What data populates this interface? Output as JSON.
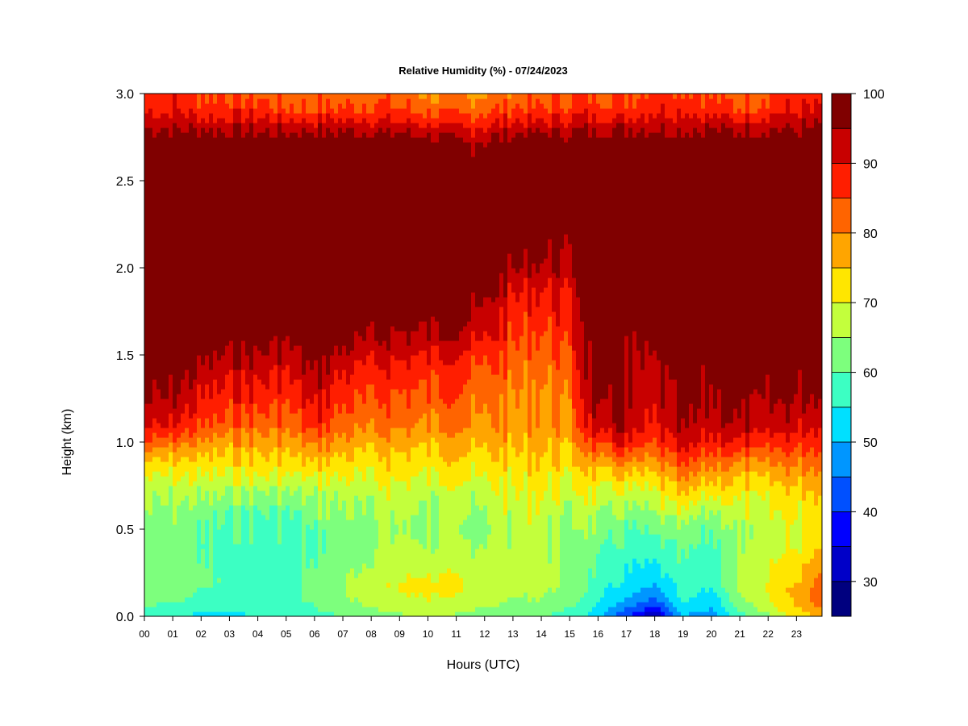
{
  "chart_data": {
    "type": "heatmap",
    "title": "Relative Humidity (%) - 07/24/2023",
    "xlabel": "Hours (UTC)",
    "ylabel": "Height (km)",
    "xlim": [
      0,
      23.9
    ],
    "ylim": [
      0,
      3.0
    ],
    "x_ticks": [
      "00",
      "01",
      "02",
      "03",
      "04",
      "05",
      "06",
      "07",
      "08",
      "09",
      "10",
      "11",
      "12",
      "13",
      "14",
      "15",
      "16",
      "17",
      "18",
      "19",
      "20",
      "21",
      "22",
      "23"
    ],
    "y_ticks": [
      "0.0",
      "0.5",
      "1.0",
      "1.5",
      "2.0",
      "2.5",
      "3.0"
    ],
    "colorbar": {
      "levels": [
        25,
        30,
        35,
        40,
        45,
        50,
        55,
        60,
        65,
        70,
        75,
        80,
        85,
        90,
        95,
        100
      ],
      "colors": [
        "#00007f",
        "#0000c8",
        "#0000ff",
        "#0050ff",
        "#0096ff",
        "#00e0ff",
        "#3cffc3",
        "#7dff7d",
        "#c3ff3c",
        "#ffe600",
        "#ffa500",
        "#ff6400",
        "#ff1e00",
        "#c80000",
        "#800000"
      ],
      "tick_labels": [
        "30",
        "40",
        "50",
        "60",
        "70",
        "80",
        "90",
        "100"
      ],
      "tick_values": [
        30,
        40,
        50,
        60,
        70,
        80,
        90,
        100
      ]
    },
    "profile_heights_km": [
      0.0,
      0.05,
      0.1,
      0.15,
      0.2,
      0.3,
      0.4,
      0.5,
      0.6,
      0.7,
      0.8,
      0.9,
      1.0,
      1.1,
      1.25,
      1.4,
      1.5,
      1.6,
      1.75,
      1.9,
      2.0,
      2.2,
      2.5,
      2.7,
      2.8,
      2.9,
      3.0
    ],
    "profiles": [
      {
        "hour": 0,
        "rh": [
          55,
          60,
          62,
          63,
          64,
          63,
          63,
          64,
          65,
          67,
          70,
          76,
          85,
          92,
          96,
          98,
          100,
          100,
          100,
          100,
          100,
          100,
          100,
          100,
          95,
          90,
          88
        ]
      },
      {
        "hour": 1,
        "rh": [
          55,
          58,
          62,
          63,
          64,
          63,
          62,
          63,
          64,
          66,
          70,
          75,
          82,
          90,
          95,
          98,
          100,
          100,
          100,
          100,
          100,
          100,
          100,
          100,
          95,
          90,
          88
        ]
      },
      {
        "hour": 2,
        "rh": [
          54,
          56,
          58,
          60,
          62,
          61,
          60,
          61,
          63,
          66,
          70,
          74,
          80,
          86,
          90,
          94,
          97,
          100,
          100,
          100,
          100,
          100,
          100,
          100,
          95,
          88,
          85
        ]
      },
      {
        "hour": 3,
        "rh": [
          54,
          56,
          57,
          58,
          59,
          58,
          58,
          59,
          61,
          65,
          70,
          74,
          78,
          84,
          88,
          92,
          95,
          98,
          100,
          100,
          100,
          100,
          100,
          100,
          94,
          88,
          85
        ]
      },
      {
        "hour": 4,
        "rh": [
          55,
          56,
          57,
          58,
          59,
          58,
          58,
          58,
          60,
          64,
          70,
          74,
          78,
          83,
          88,
          92,
          95,
          98,
          100,
          100,
          100,
          100,
          100,
          100,
          94,
          88,
          84
        ]
      },
      {
        "hour": 5,
        "rh": [
          56,
          57,
          58,
          59,
          59,
          58,
          58,
          58,
          60,
          64,
          70,
          74,
          78,
          82,
          86,
          90,
          93,
          96,
          100,
          100,
          100,
          100,
          100,
          100,
          94,
          86,
          82
        ]
      },
      {
        "hour": 6,
        "rh": [
          58,
          60,
          61,
          62,
          62,
          61,
          60,
          61,
          63,
          66,
          70,
          76,
          82,
          88,
          92,
          96,
          98,
          100,
          100,
          100,
          100,
          100,
          100,
          100,
          94,
          86,
          82
        ]
      },
      {
        "hour": 7,
        "rh": [
          60,
          62,
          64,
          65,
          65,
          63,
          62,
          62,
          64,
          66,
          70,
          74,
          78,
          82,
          86,
          90,
          94,
          97,
          100,
          100,
          100,
          100,
          100,
          100,
          94,
          86,
          82
        ]
      },
      {
        "hour": 8,
        "rh": [
          62,
          65,
          67,
          68,
          68,
          66,
          65,
          65,
          66,
          68,
          71,
          74,
          78,
          82,
          86,
          89,
          92,
          96,
          99,
          100,
          100,
          100,
          100,
          100,
          94,
          87,
          83
        ]
      },
      {
        "hour": 9,
        "rh": [
          64,
          67,
          69,
          70,
          70,
          68,
          66,
          65,
          66,
          68,
          71,
          74,
          77,
          81,
          84,
          88,
          91,
          94,
          98,
          100,
          100,
          100,
          100,
          100,
          93,
          86,
          82
        ]
      },
      {
        "hour": 10,
        "rh": [
          65,
          68,
          70,
          71,
          71,
          68,
          66,
          64,
          65,
          67,
          70,
          73,
          76,
          80,
          84,
          87,
          90,
          94,
          98,
          100,
          100,
          100,
          100,
          100,
          92,
          84,
          80
        ]
      },
      {
        "hour": 11,
        "rh": [
          64,
          67,
          69,
          70,
          70,
          68,
          65,
          63,
          64,
          66,
          70,
          73,
          76,
          80,
          83,
          86,
          89,
          93,
          97,
          100,
          100,
          100,
          100,
          96,
          90,
          83,
          78
        ]
      },
      {
        "hour": 12,
        "rh": [
          62,
          65,
          67,
          68,
          68,
          67,
          66,
          65,
          66,
          68,
          71,
          74,
          77,
          80,
          82,
          85,
          87,
          91,
          95,
          98,
          100,
          100,
          100,
          97,
          91,
          85,
          80
        ]
      },
      {
        "hour": 13,
        "rh": [
          60,
          63,
          65,
          66,
          67,
          67,
          67,
          67,
          68,
          70,
          72,
          74,
          77,
          79,
          80,
          82,
          84,
          86,
          88,
          92,
          96,
          100,
          100,
          100,
          93,
          86,
          82
        ]
      },
      {
        "hour": 14,
        "rh": [
          60,
          63,
          65,
          66,
          67,
          67,
          67,
          67,
          68,
          70,
          72,
          74,
          76,
          78,
          79,
          80,
          82,
          84,
          87,
          90,
          94,
          98,
          100,
          100,
          93,
          86,
          82
        ]
      },
      {
        "hour": 15,
        "rh": [
          58,
          60,
          62,
          63,
          64,
          64,
          64,
          64,
          66,
          68,
          71,
          74,
          77,
          80,
          82,
          84,
          86,
          88,
          90,
          92,
          94,
          98,
          100,
          100,
          94,
          88,
          84
        ]
      },
      {
        "hour": 16,
        "rh": [
          52,
          54,
          56,
          57,
          58,
          60,
          62,
          64,
          67,
          70,
          74,
          80,
          88,
          94,
          98,
          100,
          100,
          100,
          100,
          100,
          100,
          100,
          100,
          100,
          94,
          88,
          85
        ]
      },
      {
        "hour": 17,
        "rh": [
          40,
          46,
          50,
          52,
          54,
          56,
          58,
          60,
          64,
          68,
          74,
          82,
          90,
          95,
          96,
          96,
          96,
          97,
          98,
          100,
          100,
          100,
          100,
          100,
          95,
          88,
          85
        ]
      },
      {
        "hour": 18,
        "rh": [
          30,
          38,
          44,
          48,
          52,
          55,
          58,
          62,
          66,
          70,
          74,
          80,
          86,
          90,
          92,
          94,
          96,
          98,
          100,
          100,
          100,
          100,
          100,
          100,
          95,
          90,
          87
        ]
      },
      {
        "hour": 19,
        "rh": [
          50,
          54,
          56,
          58,
          58,
          60,
          62,
          65,
          70,
          76,
          82,
          88,
          94,
          97,
          99,
          100,
          100,
          100,
          100,
          100,
          100,
          100,
          100,
          100,
          95,
          90,
          87
        ]
      },
      {
        "hour": 20,
        "rh": [
          46,
          50,
          52,
          54,
          56,
          57,
          58,
          60,
          64,
          70,
          76,
          82,
          88,
          92,
          94,
          96,
          98,
          100,
          100,
          100,
          100,
          100,
          100,
          100,
          95,
          88,
          84
        ]
      },
      {
        "hour": 21,
        "rh": [
          58,
          62,
          64,
          66,
          67,
          67,
          66,
          66,
          68,
          72,
          76,
          82,
          90,
          95,
          98,
          100,
          100,
          100,
          100,
          100,
          100,
          100,
          100,
          100,
          94,
          86,
          82
        ]
      },
      {
        "hour": 22,
        "rh": [
          64,
          68,
          70,
          71,
          71,
          70,
          68,
          68,
          70,
          72,
          76,
          82,
          88,
          93,
          96,
          98,
          100,
          100,
          100,
          100,
          100,
          100,
          100,
          100,
          95,
          89,
          85
        ]
      },
      {
        "hour": 23,
        "rh": [
          72,
          75,
          76,
          76,
          75,
          72,
          70,
          70,
          71,
          73,
          77,
          82,
          87,
          92,
          95,
          97,
          99,
          100,
          100,
          100,
          100,
          100,
          100,
          100,
          95,
          90,
          87
        ]
      },
      {
        "hour": 23.9,
        "rh": [
          76,
          80,
          84,
          84,
          82,
          78,
          74,
          72,
          72,
          74,
          78,
          82,
          86,
          90,
          94,
          97,
          99,
          100,
          100,
          100,
          100,
          100,
          100,
          100,
          95,
          90,
          87
        ]
      }
    ]
  }
}
